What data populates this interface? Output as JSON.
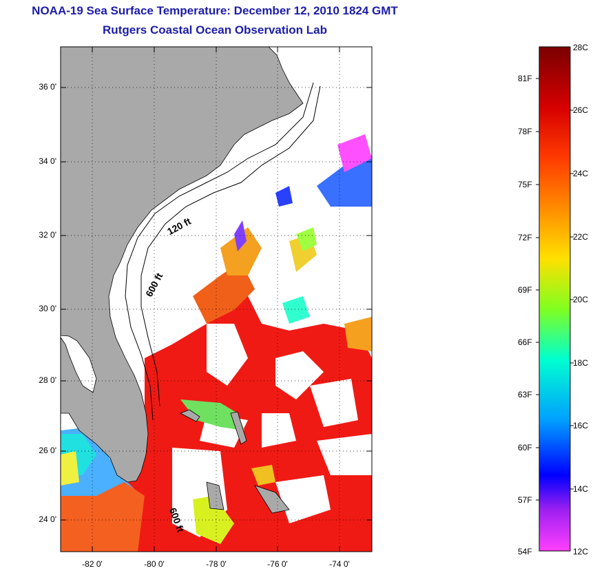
{
  "title": {
    "line1": "NOAA-19 Sea Surface Temperature:  December 12, 2010 1824 GMT",
    "line2": "Rutgers Coastal Ocean Observation Lab"
  },
  "map": {
    "lat_labels": [
      "36 0'",
      "34 0'",
      "32 0'",
      "30 0'",
      "28 0'",
      "26 0'",
      "24 0'"
    ],
    "lon_labels": [
      "-82 0'",
      "-80 0'",
      "-78 0'",
      "-76 0'",
      "-74 0'"
    ],
    "contour_labels": [
      "120 ft",
      "600 ft",
      "600 ft"
    ],
    "colors": {
      "land": "#a9a9a9",
      "cloud": "#ffffff",
      "warm": "#f01a14"
    }
  },
  "colorbar": {
    "celsius_labels": [
      "28C",
      "26C",
      "24C",
      "22C",
      "20C",
      "18C",
      "16C",
      "14C",
      "12C"
    ],
    "fahrenheit_labels": [
      "81F",
      "78F",
      "75F",
      "72F",
      "69F",
      "66F",
      "63F",
      "60F",
      "57F",
      "54F"
    ],
    "range_c": [
      12,
      28
    ]
  }
}
